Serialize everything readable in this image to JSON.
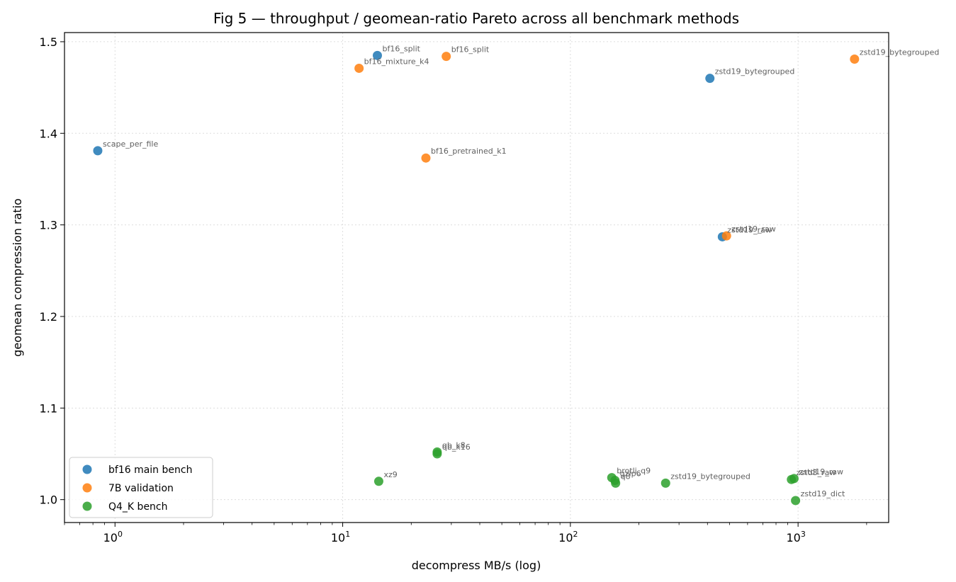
{
  "chart_data": {
    "type": "scatter",
    "title": "Fig 5 — throughput / geomean-ratio Pareto across all benchmark methods",
    "xlabel": "decompress MB/s (log)",
    "ylabel": "geomean compression ratio",
    "xscale": "log",
    "xlim": [
      0.6,
      2500
    ],
    "ylim": [
      0.975,
      1.51
    ],
    "grid": true,
    "legend_position": "lower-left",
    "x_ticks": [
      {
        "value": 1,
        "base": "10",
        "exp": "0"
      },
      {
        "value": 10,
        "base": "10",
        "exp": "1"
      },
      {
        "value": 100,
        "base": "10",
        "exp": "2"
      },
      {
        "value": 1000,
        "base": "10",
        "exp": "3"
      }
    ],
    "y_ticks": [
      "1.0",
      "1.1",
      "1.2",
      "1.3",
      "1.4",
      "1.5"
    ],
    "series": [
      {
        "name": "bf16 main bench",
        "color": "#1f77b4",
        "points": [
          {
            "label": "scape_per_file",
            "x": 0.84,
            "y": 1.381
          },
          {
            "label": "bf16_split",
            "x": 14.2,
            "y": 1.485
          },
          {
            "label": "zstd19_bytegrouped",
            "x": 410,
            "y": 1.46
          },
          {
            "label": "zstd19_raw",
            "x": 465,
            "y": 1.287
          }
        ]
      },
      {
        "name": "7B validation",
        "color": "#ff7f0e",
        "points": [
          {
            "label": "bf16_mixture_k4",
            "x": 11.8,
            "y": 1.471
          },
          {
            "label": "bf16_split",
            "x": 28.5,
            "y": 1.484
          },
          {
            "label": "bf16_pretrained_k1",
            "x": 23.2,
            "y": 1.373
          },
          {
            "label": "zstd19_raw",
            "x": 485,
            "y": 1.288
          },
          {
            "label": "zstd19_bytegrouped",
            "x": 1770,
            "y": 1.481
          }
        ]
      },
      {
        "name": "Q4_K bench",
        "color": "#2ca02c",
        "points": [
          {
            "label": "xz9",
            "x": 14.4,
            "y": 1.02
          },
          {
            "label": "qb_k8",
            "x": 26.0,
            "y": 1.052
          },
          {
            "label": "qb_k16",
            "x": 26.0,
            "y": 1.05
          },
          {
            "label": "brotli_q9",
            "x": 152,
            "y": 1.024
          },
          {
            "label": "gzip6",
            "x": 157,
            "y": 1.021
          },
          {
            "label": "q8",
            "x": 158,
            "y": 1.018
          },
          {
            "label": "zstd19_bytegrouped",
            "x": 262,
            "y": 1.018
          },
          {
            "label": "zstd3_raw",
            "x": 935,
            "y": 1.022
          },
          {
            "label": "zstd19_raw",
            "x": 960,
            "y": 1.023
          },
          {
            "label": "zstd19_dict",
            "x": 975,
            "y": 0.999
          }
        ]
      }
    ]
  }
}
